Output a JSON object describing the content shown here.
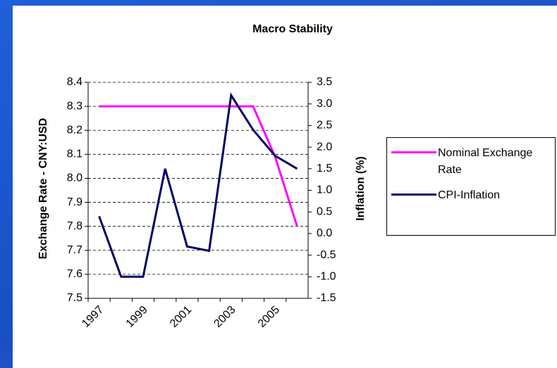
{
  "chart_data": {
    "type": "line",
    "title": "Macro Stability",
    "y_label": "Exchange Rate - CNY:USD",
    "y2_label": "Inflation (%)",
    "categories": [
      "1997",
      null,
      "1999",
      null,
      "2001",
      null,
      "2003",
      null,
      "2005",
      null
    ],
    "series": [
      {
        "name": "Nominal Exchange Rate",
        "color": "#ff00ff",
        "axis": "y",
        "values": [
          8.3,
          8.3,
          8.3,
          8.3,
          8.3,
          8.3,
          8.3,
          8.3,
          8.09,
          7.8
        ]
      },
      {
        "name": "CPI-Inflation",
        "color": "#000066",
        "axis": "y2",
        "values": [
          0.4,
          -1.0,
          -1.0,
          1.5,
          -0.3,
          -0.4,
          3.2,
          2.4,
          1.8,
          1.5
        ]
      }
    ],
    "ylim": [
      7.5,
      8.4
    ],
    "yticks": [
      7.5,
      7.6,
      7.7,
      7.8,
      7.9,
      {
        "value": 8,
        "label": "8.0"
      },
      8.1,
      8.2,
      8.3,
      8.4
    ],
    "y2lim": [
      -1.5,
      3.5
    ],
    "y2ticks": [
      -1.5,
      {
        "value": -1,
        "label": "-1.0"
      },
      -0.5,
      {
        "value": 0,
        "label": "0.0"
      },
      0.5,
      {
        "value": 1,
        "label": "1.0"
      },
      1.5,
      {
        "value": 2,
        "label": "2.0"
      },
      2.5,
      {
        "value": 3,
        "label": "3.0"
      },
      3.5
    ],
    "grid": true,
    "legend": "right"
  }
}
